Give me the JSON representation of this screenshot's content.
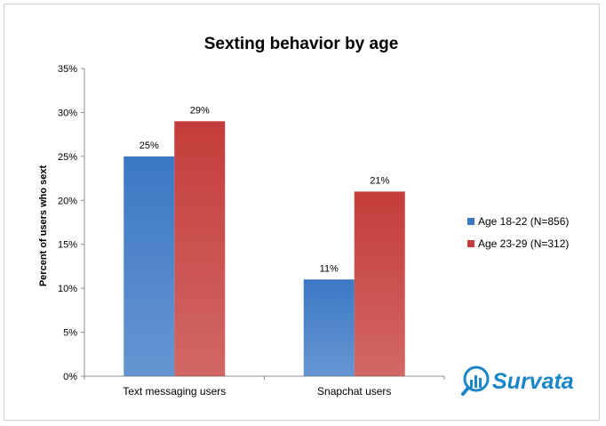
{
  "chart_data": {
    "type": "bar",
    "title": "Sexting behavior by age",
    "xlabel": "",
    "ylabel": "Percent of users who sext",
    "categories": [
      "Text messaging users",
      "Snapchat users"
    ],
    "series": [
      {
        "name": "Age 18-22 (N=856)",
        "values": [
          25,
          11
        ],
        "labels": [
          "25%",
          "11%"
        ],
        "color": "#3b78c4"
      },
      {
        "name": "Age 23-29 (N=312)",
        "values": [
          29,
          21
        ],
        "labels": [
          "29%",
          "21%"
        ],
        "color": "#c43d3a"
      }
    ],
    "yticks": [
      "0%",
      "5%",
      "10%",
      "15%",
      "20%",
      "25%",
      "30%",
      "35%"
    ],
    "ylim": [
      0,
      35
    ],
    "grid": false,
    "legend_position": "right"
  },
  "logo": {
    "text": "Survata",
    "color": "#1a86c8"
  }
}
